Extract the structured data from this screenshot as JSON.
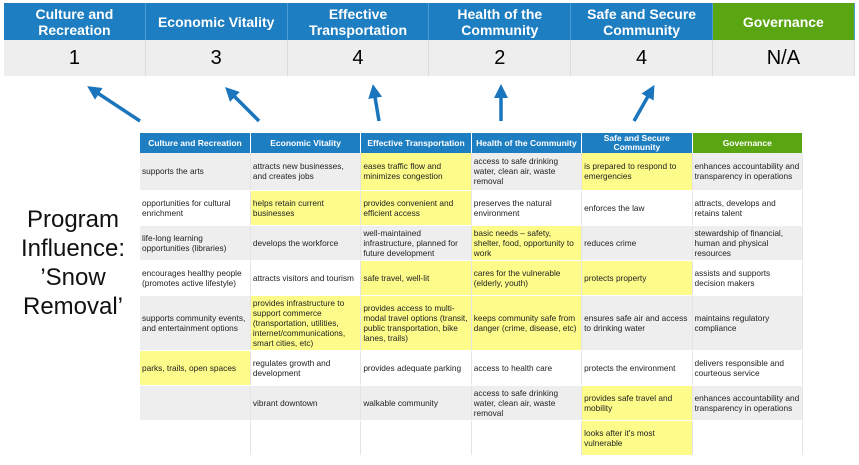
{
  "top_headers": [
    "Culture and Recreation",
    "Economic Vitality",
    "Effective Transportation",
    "Health of the Community",
    "Safe and Secure Community",
    "Governance"
  ],
  "scores": [
    "1",
    "3",
    "4",
    "2",
    "4",
    "N/A"
  ],
  "side_title": "Program Influence: ’Snow Removal’",
  "colors": {
    "header_blue": "#1e7ec2",
    "governance_green": "#5aa512",
    "highlight": "#fdfb8a",
    "arrow": "#1a75bc"
  },
  "table": {
    "headers": [
      "Culture and Recreation",
      "Economic Vitality",
      "Effective Transportation",
      "Health of the Community",
      "Safe and Secure Community",
      "Governance"
    ],
    "rows": [
      {
        "cells": [
          "supports the arts",
          "attracts new businesses, and creates jobs",
          "eases traffic flow and minimizes congestion",
          "access to safe drinking water, clean air, waste removal",
          "is prepared to respond to emergencies",
          "enhances accountability and transparency in operations"
        ],
        "highlighted": [
          2,
          4
        ]
      },
      {
        "cells": [
          "opportunities for cultural enrichment",
          "helps retain current businesses",
          "provides convenient and efficient access",
          "preserves the natural environment",
          "enforces the law",
          "attracts, develops and retains talent"
        ],
        "highlighted": [
          1,
          2
        ]
      },
      {
        "cells": [
          "life-long learning opportunities (libraries)",
          "develops the workforce",
          "well-maintained infrastructure, planned for future development",
          "basic needs – safety, shelter, food, opportunity to work",
          "reduces crime",
          "stewardship of financial, human and physical resources"
        ],
        "highlighted": [
          3
        ]
      },
      {
        "cells": [
          "encourages healthy people (promotes active lifestyle)",
          "attracts visitors and tourism",
          "safe travel, well-lit",
          "cares for the vulnerable (elderly, youth)",
          "protects property",
          "assists and supports decision makers"
        ],
        "highlighted": [
          2,
          3,
          4
        ]
      },
      {
        "cells": [
          "supports community events, and entertainment options",
          "provides infrastructure to support commerce (transportation, utilities, internet/communications, smart cities, etc)",
          "provides access to multi-modal travel options (transit, public transportation, bike lanes, trails)",
          "keeps community safe from danger (crime, disease, etc)",
          "ensures safe air and access to drinking water",
          "maintains regulatory compliance"
        ],
        "highlighted": [
          1,
          2,
          3
        ]
      },
      {
        "cells": [
          "parks, trails, open spaces",
          "regulates growth and development",
          "provides adequate parking",
          "access to health care",
          "protects the environment",
          "delivers responsible and courteous service"
        ],
        "highlighted": [
          0
        ]
      },
      {
        "cells": [
          "",
          "vibrant downtown",
          "walkable community",
          "access to safe drinking water, clean air, waste removal",
          "provides safe travel and mobility",
          "enhances accountability and transparency in operations"
        ],
        "highlighted": [
          4
        ]
      },
      {
        "cells": [
          "",
          "",
          "",
          "",
          "looks after it's most vulnerable",
          ""
        ],
        "highlighted": [
          4
        ]
      }
    ]
  }
}
